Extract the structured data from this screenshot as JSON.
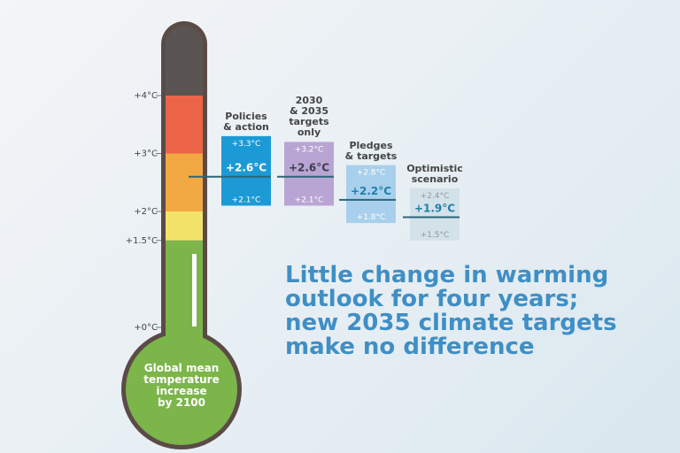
{
  "chart_data": {
    "type": "range",
    "annotation": "Little change in warming\noutlook for four years;\nnew 2035 climate targets\nmake no difference",
    "bulb_label": "Global mean\ntemperature\nincrease\nby 2100",
    "categories": [
      "Policies\n& action",
      "2030\n& 2035\ntargets\nonly",
      "Pledges\n& targets",
      "Optimistic\nscenario"
    ],
    "values": [
      2.6,
      2.6,
      2.2,
      1.9
    ],
    "value_labels": [
      "+2.6°C",
      "+2.6°C",
      "+2.2°C",
      "+1.9°C"
    ],
    "lows": [
      2.1,
      2.1,
      1.8,
      1.5
    ],
    "low_labels": [
      "+2.1°C",
      "+2.1°C",
      "+1.8°C",
      "+1.5°C"
    ],
    "highs": [
      3.3,
      3.2,
      2.8,
      2.4
    ],
    "high_labels": [
      "+3.3°C",
      "+3.2°C",
      "+2.8°C",
      "+2.4°C"
    ],
    "colors": [
      "#1c9ad6",
      "#b9a5d3",
      "#a8d0ec",
      "#d3e1e9"
    ],
    "ylim": [
      0,
      5.2
    ],
    "yticks": [
      {
        "value": 0,
        "label": "+0°C"
      },
      {
        "value": 1.5,
        "label": "+1.5°C"
      },
      {
        "value": 2,
        "label": "+2°C"
      },
      {
        "value": 3,
        "label": "+3°C"
      },
      {
        "value": 4,
        "label": "+4°C"
      }
    ],
    "band_colors": [
      "#7cb54a",
      "#f3e36b",
      "#f2a843",
      "#ec6447",
      "#5a5452"
    ]
  }
}
